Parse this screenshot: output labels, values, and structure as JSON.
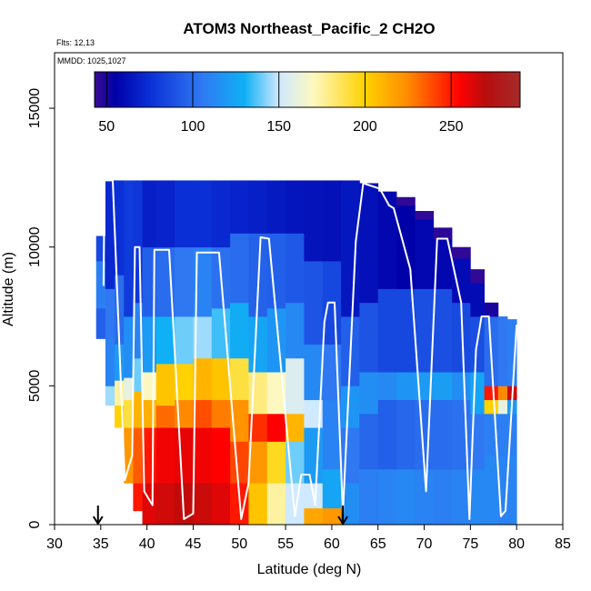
{
  "chart_data": {
    "type": "heatmap",
    "title": "ATOM3 Northeast_Pacific_2 CH2O",
    "flights_label": "Flts: 12,13",
    "dates_label": "MMDD: 1025,1027",
    "xlabel": "Latitude (deg N)",
    "ylabel": "Altitude (m)",
    "xlim": [
      30,
      85
    ],
    "ylim": [
      0,
      15000
    ],
    "x_ticks": [
      "30",
      "35",
      "40",
      "45",
      "50",
      "55",
      "60",
      "65",
      "70",
      "75",
      "80",
      "85"
    ],
    "y_ticks": [
      "0",
      "5000",
      "10000",
      "15000"
    ],
    "colorbar": {
      "range": [
        43,
        290
      ],
      "ticks": [
        "50",
        "100",
        "150",
        "200",
        "250"
      ],
      "tick_values": [
        50,
        100,
        150,
        200,
        250
      ],
      "colors": [
        "#3a0b93",
        "#0000a8",
        "#0a2fd6",
        "#2f78f2",
        "#0fb0f5",
        "#cfe9ff",
        "#fdf8c0",
        "#ffd200",
        "#ff8a00",
        "#ff0000",
        "#b80d0d",
        "#a52a2a"
      ],
      "stops": [
        43,
        55,
        75,
        105,
        130,
        150,
        170,
        200,
        225,
        255,
        270,
        290
      ]
    },
    "arrows_at_latitude": [
      34.7,
      61.2
    ],
    "grid_columns": [
      {
        "x0": 34.5,
        "x1": 35.5,
        "segs": [
          [
            6700,
            7800,
            95
          ],
          [
            7800,
            9500,
            108
          ],
          [
            9500,
            10400,
            85
          ]
        ]
      },
      {
        "x0": 35.5,
        "x1": 36.5,
        "segs": [
          [
            4300,
            5000,
            145
          ],
          [
            5000,
            6700,
            110
          ],
          [
            6700,
            8500,
            105
          ],
          [
            8500,
            12400,
            72
          ]
        ]
      },
      {
        "x0": 36.5,
        "x1": 37.5,
        "segs": [
          [
            3500,
            4300,
            200
          ],
          [
            4300,
            5200,
            175
          ],
          [
            5200,
            6500,
            120
          ],
          [
            6500,
            9000,
            100
          ],
          [
            9000,
            12400,
            75
          ]
        ]
      },
      {
        "x0": 37.5,
        "x1": 38.5,
        "segs": [
          [
            1500,
            3500,
            220
          ],
          [
            3500,
            4500,
            190
          ],
          [
            4500,
            5300,
            160
          ],
          [
            5300,
            7500,
            115
          ],
          [
            7500,
            12400,
            80
          ]
        ]
      },
      {
        "x0": 38.5,
        "x1": 39.5,
        "segs": [
          [
            500,
            1500,
            250
          ],
          [
            1500,
            3500,
            235
          ],
          [
            3500,
            4800,
            210
          ],
          [
            4800,
            6000,
            140
          ],
          [
            6000,
            8000,
            110
          ],
          [
            8000,
            12400,
            78
          ]
        ]
      },
      {
        "x0": 39.5,
        "x1": 41,
        "segs": [
          [
            0,
            1500,
            262
          ],
          [
            1500,
            3500,
            250
          ],
          [
            3500,
            4500,
            212
          ],
          [
            4500,
            5500,
            170
          ],
          [
            5500,
            7500,
            120
          ],
          [
            7500,
            10000,
            95
          ],
          [
            10000,
            12400,
            68
          ]
        ]
      },
      {
        "x0": 41,
        "x1": 43,
        "segs": [
          [
            0,
            1500,
            265
          ],
          [
            1500,
            3500,
            258
          ],
          [
            3500,
            4300,
            232
          ],
          [
            4300,
            5800,
            205
          ],
          [
            5800,
            7500,
            130
          ],
          [
            7500,
            10000,
            100
          ],
          [
            10000,
            12400,
            70
          ]
        ]
      },
      {
        "x0": 43,
        "x1": 45,
        "segs": [
          [
            0,
            1500,
            268
          ],
          [
            1500,
            3500,
            260
          ],
          [
            3500,
            4500,
            225
          ],
          [
            4500,
            5800,
            200
          ],
          [
            5800,
            7500,
            140
          ],
          [
            7500,
            10000,
            105
          ],
          [
            10000,
            12400,
            75
          ]
        ]
      },
      {
        "x0": 45,
        "x1": 47,
        "segs": [
          [
            0,
            1500,
            266
          ],
          [
            1500,
            3500,
            258
          ],
          [
            3500,
            4500,
            238
          ],
          [
            4500,
            6000,
            210
          ],
          [
            6000,
            7500,
            145
          ],
          [
            7500,
            10000,
            110
          ],
          [
            10000,
            12400,
            75
          ]
        ]
      },
      {
        "x0": 47,
        "x1": 49,
        "segs": [
          [
            0,
            1500,
            262
          ],
          [
            1500,
            3500,
            255
          ],
          [
            3500,
            4500,
            228
          ],
          [
            4500,
            6000,
            205
          ],
          [
            6000,
            7800,
            135
          ],
          [
            7800,
            10000,
            102
          ],
          [
            10000,
            12400,
            72
          ]
        ]
      },
      {
        "x0": 49,
        "x1": 51,
        "segs": [
          [
            0,
            1500,
            250
          ],
          [
            1500,
            3000,
            240
          ],
          [
            3000,
            4500,
            222
          ],
          [
            4500,
            6000,
            190
          ],
          [
            6000,
            8000,
            128
          ],
          [
            8000,
            10500,
            100
          ],
          [
            10500,
            12400,
            70
          ]
        ]
      },
      {
        "x0": 51,
        "x1": 53,
        "segs": [
          [
            0,
            1500,
            205
          ],
          [
            1500,
            3000,
            220
          ],
          [
            3000,
            4000,
            245
          ],
          [
            4000,
            5500,
            180
          ],
          [
            5500,
            7500,
            125
          ],
          [
            7500,
            10500,
            96
          ],
          [
            10500,
            12400,
            68
          ]
        ]
      },
      {
        "x0": 53,
        "x1": 55,
        "segs": [
          [
            0,
            1500,
            175
          ],
          [
            1500,
            3000,
            195
          ],
          [
            3000,
            4000,
            255
          ],
          [
            4000,
            5500,
            170
          ],
          [
            5500,
            7800,
            118
          ],
          [
            7800,
            10500,
            95
          ],
          [
            10500,
            12400,
            66
          ]
        ]
      },
      {
        "x0": 55,
        "x1": 57,
        "segs": [
          [
            0,
            1500,
            150
          ],
          [
            1500,
            3000,
            140
          ],
          [
            3000,
            4000,
            210
          ],
          [
            4000,
            6000,
            155
          ],
          [
            6000,
            8000,
            112
          ],
          [
            8000,
            10500,
            92
          ],
          [
            10500,
            12400,
            64
          ]
        ]
      },
      {
        "x0": 57,
        "x1": 59,
        "segs": [
          [
            0,
            600,
            215
          ],
          [
            600,
            1500,
            150
          ],
          [
            1500,
            3500,
            120
          ],
          [
            3500,
            4500,
            150
          ],
          [
            4500,
            6500,
            112
          ],
          [
            6500,
            9500,
            90
          ],
          [
            9500,
            12400,
            63
          ]
        ]
      },
      {
        "x0": 59,
        "x1": 61,
        "segs": [
          [
            0,
            600,
            220
          ],
          [
            600,
            2000,
            125
          ],
          [
            2000,
            4500,
            110
          ],
          [
            4500,
            6500,
            105
          ],
          [
            6500,
            9500,
            85
          ],
          [
            9500,
            12400,
            62
          ]
        ]
      },
      {
        "x0": 61,
        "x1": 63,
        "segs": [
          [
            0,
            1500,
            115
          ],
          [
            1500,
            3500,
            105
          ],
          [
            3500,
            5000,
            118
          ],
          [
            5000,
            7500,
            95
          ],
          [
            7500,
            12400,
            65
          ]
        ]
      },
      {
        "x0": 63,
        "x1": 65,
        "segs": [
          [
            0,
            2000,
            108
          ],
          [
            2000,
            4000,
            98
          ],
          [
            4000,
            5500,
            115
          ],
          [
            5500,
            8000,
            90
          ],
          [
            8000,
            12300,
            62
          ]
        ]
      },
      {
        "x0": 65,
        "x1": 67,
        "segs": [
          [
            0,
            2000,
            110
          ],
          [
            2000,
            4500,
            95
          ],
          [
            4500,
            5500,
            112
          ],
          [
            5500,
            8500,
            85
          ],
          [
            8500,
            12000,
            58
          ]
        ]
      },
      {
        "x0": 67,
        "x1": 69,
        "segs": [
          [
            0,
            2000,
            112
          ],
          [
            2000,
            4500,
            98
          ],
          [
            4500,
            5500,
            118
          ],
          [
            5500,
            8500,
            85
          ],
          [
            8500,
            11500,
            55
          ],
          [
            11500,
            11800,
            45
          ]
        ]
      },
      {
        "x0": 69,
        "x1": 71,
        "segs": [
          [
            0,
            2000,
            110
          ],
          [
            2000,
            4500,
            100
          ],
          [
            4500,
            5500,
            120
          ],
          [
            5500,
            8500,
            88
          ],
          [
            8500,
            11000,
            58
          ],
          [
            11000,
            11300,
            45
          ]
        ]
      },
      {
        "x0": 71,
        "x1": 73,
        "segs": [
          [
            0,
            2000,
            108
          ],
          [
            2000,
            4500,
            100
          ],
          [
            4500,
            5500,
            122
          ],
          [
            5500,
            8500,
            88
          ],
          [
            8500,
            10300,
            58
          ],
          [
            10300,
            10700,
            46
          ]
        ]
      },
      {
        "x0": 73,
        "x1": 75,
        "segs": [
          [
            0,
            2000,
            110
          ],
          [
            2000,
            4500,
            102
          ],
          [
            4500,
            5500,
            115
          ],
          [
            5500,
            8000,
            86
          ],
          [
            8000,
            9600,
            60
          ],
          [
            9600,
            10000,
            45
          ]
        ]
      },
      {
        "x0": 75,
        "x1": 76.5,
        "segs": [
          [
            0,
            2000,
            112
          ],
          [
            2000,
            4000,
            105
          ],
          [
            4000,
            5500,
            125
          ],
          [
            5500,
            7500,
            88
          ],
          [
            7500,
            8700,
            60
          ],
          [
            8700,
            9200,
            45
          ]
        ]
      },
      {
        "x0": 76.5,
        "x1": 78,
        "segs": [
          [
            0,
            2500,
            112
          ],
          [
            2500,
            4000,
            108
          ],
          [
            4000,
            4500,
            200
          ],
          [
            4500,
            5000,
            250
          ],
          [
            5000,
            7500,
            100
          ],
          [
            7500,
            8000,
            50
          ]
        ]
      },
      {
        "x0": 78,
        "x1": 79,
        "segs": [
          [
            0,
            2500,
            110
          ],
          [
            2500,
            4000,
            108
          ],
          [
            4000,
            4500,
            160
          ],
          [
            4500,
            5000,
            225
          ],
          [
            5000,
            7500,
            105
          ]
        ]
      },
      {
        "x0": 79,
        "x1": 80,
        "segs": [
          [
            0,
            2500,
            110
          ],
          [
            2500,
            4000,
            108
          ],
          [
            4000,
            4500,
            120
          ],
          [
            4500,
            5000,
            265
          ],
          [
            5000,
            7400,
            108
          ]
        ]
      }
    ],
    "flight_track": [
      [
        35.3,
        8600
      ],
      [
        35.4,
        12400
      ],
      [
        36.3,
        12400
      ],
      [
        37.6,
        1600
      ],
      [
        38.4,
        2500
      ],
      [
        38.7,
        10000
      ],
      [
        39.2,
        10000
      ],
      [
        39.7,
        1200
      ],
      [
        40.6,
        700
      ],
      [
        40.8,
        9900
      ],
      [
        42.4,
        9900
      ],
      [
        44.0,
        200
      ],
      [
        45.0,
        400
      ],
      [
        45.4,
        9800
      ],
      [
        47.8,
        9800
      ],
      [
        50.2,
        200
      ],
      [
        51.0,
        1500
      ],
      [
        52.3,
        10350
      ],
      [
        53.2,
        10300
      ],
      [
        56.0,
        300
      ],
      [
        56.7,
        1800
      ],
      [
        57.6,
        1800
      ],
      [
        58.2,
        700
      ],
      [
        59.2,
        7300
      ],
      [
        59.6,
        8000
      ],
      [
        60.3,
        8000
      ],
      [
        61.2,
        400
      ],
      [
        62.6,
        10200
      ],
      [
        63.4,
        12300
      ],
      [
        65.2,
        12100
      ],
      [
        66.2,
        11500
      ],
      [
        66.7,
        11400
      ],
      [
        68.5,
        9200
      ],
      [
        70.2,
        1200
      ],
      [
        71.4,
        10300
      ],
      [
        72.5,
        10300
      ],
      [
        74.0,
        8000
      ],
      [
        74.9,
        200
      ],
      [
        75.6,
        6300
      ],
      [
        76.2,
        7500
      ],
      [
        77.0,
        7500
      ],
      [
        78.3,
        300
      ],
      [
        78.8,
        500
      ],
      [
        80.0,
        7200
      ]
    ]
  }
}
